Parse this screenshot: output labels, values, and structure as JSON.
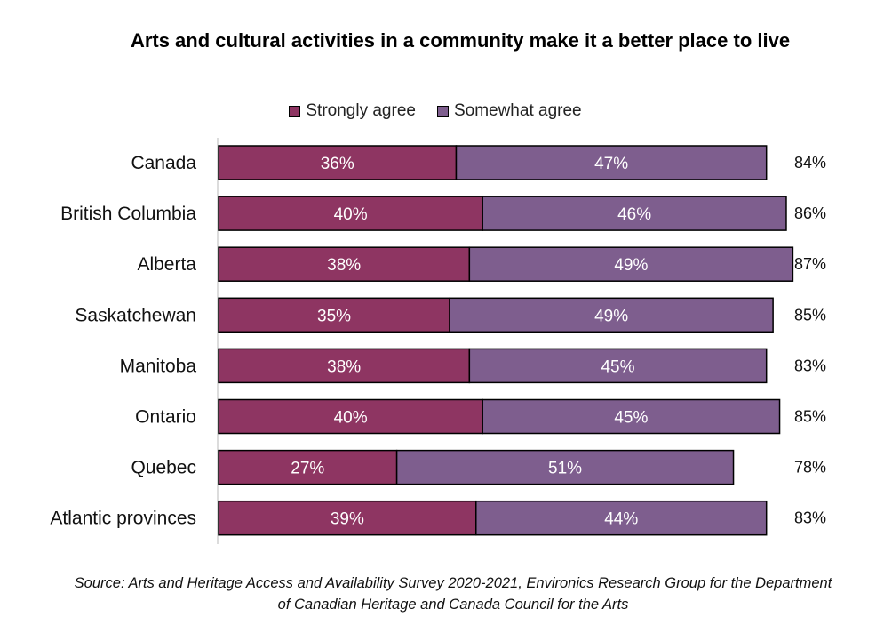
{
  "chart_data": {
    "type": "bar",
    "orientation": "horizontal",
    "stacked": true,
    "title": "Arts and cultural activities in a community make it a better place to live",
    "categories": [
      "Canada",
      "British Columbia",
      "Alberta",
      "Saskatchewan",
      "Manitoba",
      "Ontario",
      "Quebec",
      "Atlantic provinces"
    ],
    "series": [
      {
        "name": "Strongly agree",
        "color": "#8E3562",
        "values": [
          36,
          40,
          38,
          35,
          38,
          40,
          27,
          39
        ],
        "labels": [
          "36%",
          "40%",
          "38%",
          "35%",
          "38%",
          "40%",
          "27%",
          "39%"
        ]
      },
      {
        "name": "Somewhat agree",
        "color": "#7E5E8E",
        "values": [
          47,
          46,
          49,
          49,
          45,
          45,
          51,
          44
        ],
        "labels": [
          "47%",
          "46%",
          "49%",
          "49%",
          "45%",
          "45%",
          "51%",
          "44%"
        ]
      }
    ],
    "totals": [
      "84%",
      "86%",
      "87%",
      "85%",
      "83%",
      "85%",
      "78%",
      "83%"
    ],
    "legend_position": "top",
    "grid": false,
    "xlim": [
      0,
      100
    ]
  },
  "source": "Source: Arts and Heritage Access and Availability Survey 2020-2021, Environics Research Group for the Department of Canadian Heritage and Canada Council for the Arts"
}
